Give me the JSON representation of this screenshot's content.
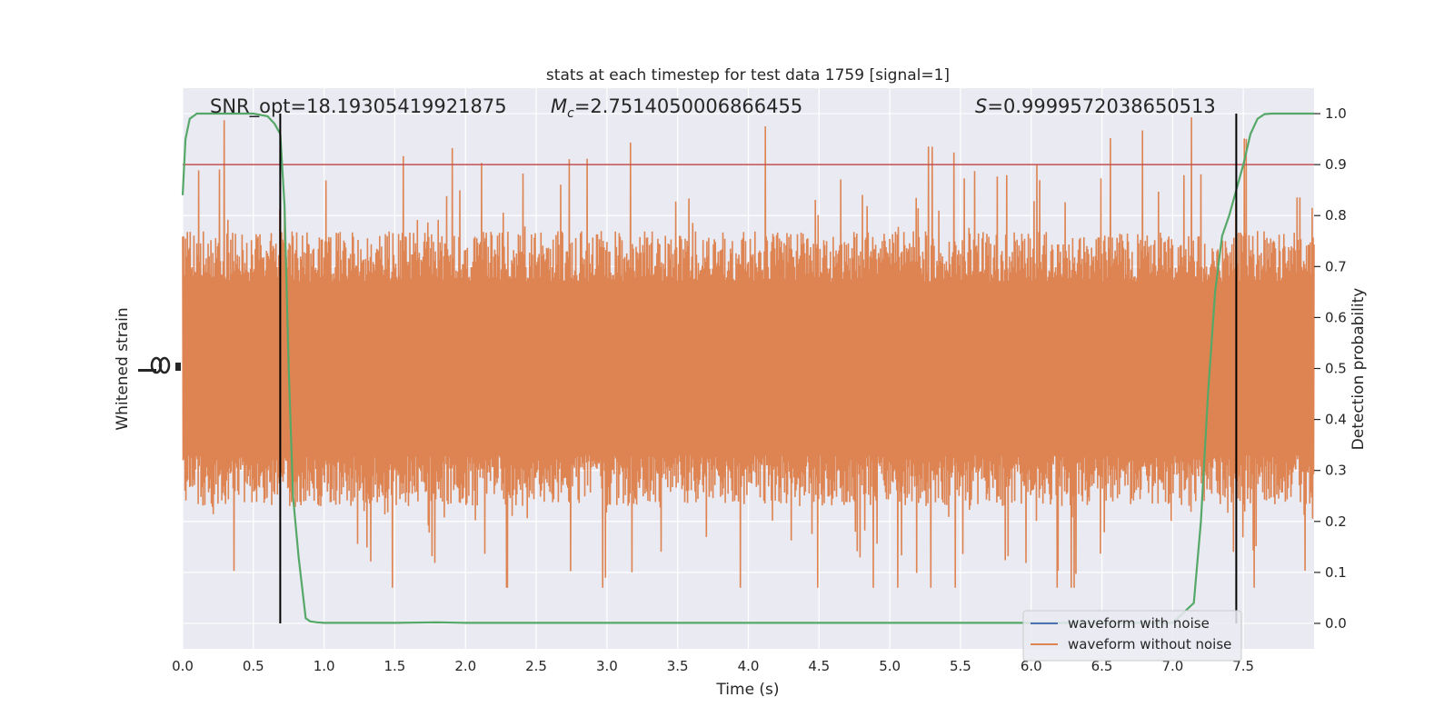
{
  "chart_data": {
    "type": "line",
    "title": "stats at each timestep for test data 1759 [signal=1]",
    "xlabel": "Time (s)",
    "ylabel_left": "Whitened strain",
    "ylabel_right": "Detection probability",
    "xlim": [
      0.0,
      8.0
    ],
    "ylim_right": [
      -0.05,
      1.05
    ],
    "xticks": [
      "0.0",
      "0.5",
      "1.0",
      "1.5",
      "2.0",
      "2.5",
      "3.0",
      "3.5",
      "4.0",
      "4.5",
      "5.0",
      "5.5",
      "6.0",
      "6.5",
      "7.0",
      "7.5"
    ],
    "yticks_right": [
      "0.0",
      "0.1",
      "0.2",
      "0.3",
      "0.4",
      "0.5",
      "0.6",
      "0.7",
      "0.8",
      "0.9",
      "1.0"
    ],
    "grid": true,
    "annotations": {
      "snr": "SNR_opt=18.19305419921875",
      "mc_symbol": "M",
      "mc_sub": "c",
      "mc_value": "=2.7514050006866455",
      "s_symbol": "S",
      "s_value": "=0.9999572038650513"
    },
    "threshold": 0.9,
    "vlines": [
      0.69,
      7.45
    ],
    "series": [
      {
        "name": "waveform with noise",
        "color": "#4c72b0"
      },
      {
        "name": "waveform without noise",
        "color": "#dd8452"
      },
      {
        "color": "#55a868",
        "x": [
          0.0,
          0.02,
          0.05,
          0.1,
          0.2,
          0.3,
          0.4,
          0.5,
          0.6,
          0.65,
          0.69,
          0.72,
          0.75,
          0.78,
          0.82,
          0.87,
          0.9,
          0.95,
          1.0,
          1.1,
          1.5,
          1.8,
          2.0,
          3.0,
          4.0,
          5.0,
          6.0,
          7.0,
          7.15,
          7.2,
          7.25,
          7.3,
          7.35,
          7.4,
          7.45,
          7.5,
          7.55,
          7.6,
          7.65,
          7.7,
          8.0
        ],
        "y": [
          0.84,
          0.95,
          0.99,
          1.0,
          1.0,
          1.0,
          1.0,
          1.0,
          0.995,
          0.98,
          0.96,
          0.82,
          0.5,
          0.25,
          0.13,
          0.01,
          0.004,
          0.002,
          0.001,
          0.001,
          0.001,
          0.002,
          0.001,
          0.001,
          0.001,
          0.001,
          0.001,
          0.001,
          0.04,
          0.2,
          0.45,
          0.65,
          0.76,
          0.8,
          0.85,
          0.9,
          0.96,
          0.99,
          0.999,
          1.0,
          1.0
        ]
      }
    ],
    "strain_envelope": {
      "center": 0.5,
      "band": [
        0.3,
        0.7
      ],
      "spike_max": 1.0,
      "spike_min": 0.07
    },
    "legend_placement": "lower-right"
  }
}
